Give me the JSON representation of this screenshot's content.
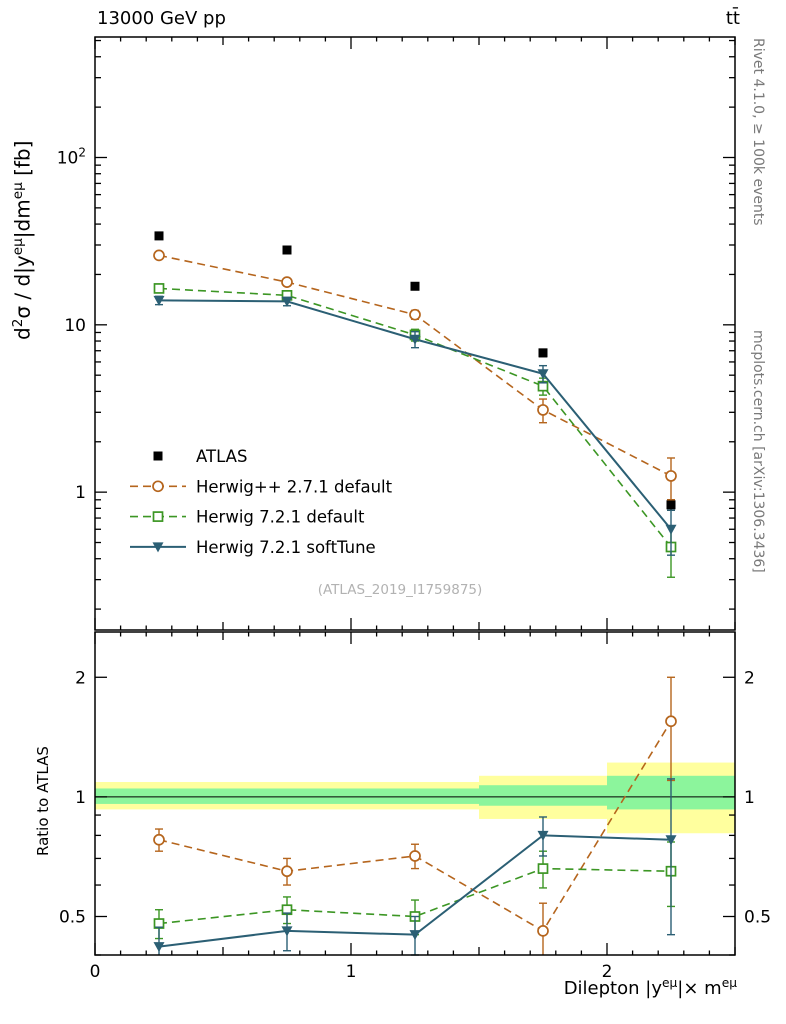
{
  "header": {
    "left": "13000 GeV pp",
    "right": "tt̄"
  },
  "side_labels": {
    "top": "Rivet 4.1.0, ≥ 100k events",
    "bottom": "mcplots.cern.ch [arXiv:1306.3436]"
  },
  "watermark": "(ATLAS_2019_I1759875)",
  "chart_data": {
    "type": "line",
    "x": [
      0.25,
      0.75,
      1.25,
      1.75,
      2.25
    ],
    "xlim": [
      0,
      2.5
    ],
    "xticks": [
      {
        "v": 0,
        "label": "0"
      },
      {
        "v": 1,
        "label": "1"
      },
      {
        "v": 2,
        "label": "2"
      }
    ],
    "xlabel_segments": [
      {
        "t": "Dilepton |y"
      },
      {
        "t": "eμ",
        "sup": true
      },
      {
        "t": "|× m"
      },
      {
        "t": "eμ",
        "sup": true
      }
    ],
    "top_panel": {
      "yscale": "log",
      "ylim": [
        0.15,
        525
      ],
      "yticks": [
        {
          "v": 1,
          "label": "1"
        },
        {
          "v": 10,
          "label": "10"
        },
        {
          "v": 100,
          "label": "10^2"
        }
      ],
      "ylabel_segments": [
        {
          "t": "d"
        },
        {
          "t": "2",
          "sup": true
        },
        {
          "t": "σ / d|y"
        },
        {
          "t": "eμ",
          "sup": true
        },
        {
          "t": "|dm"
        },
        {
          "t": "eμ",
          "sup": true
        },
        {
          "t": " [fb]"
        }
      ],
      "series": [
        {
          "name": "ATLAS",
          "marker": "square-filled",
          "color": "#000000",
          "line": "none",
          "values": [
            34,
            28,
            17,
            6.8,
            0.84
          ],
          "errors": [
            1.5,
            1.2,
            0.8,
            0.35,
            0.06
          ]
        },
        {
          "name": "Herwig++ 2.7.1 default",
          "marker": "circle-open",
          "color": "#b5651d",
          "line": "dashed",
          "values": [
            26,
            18,
            11.5,
            3.1,
            1.25
          ],
          "errors": [
            1.2,
            0.9,
            0.7,
            0.5,
            0.35
          ]
        },
        {
          "name": "Herwig 7.2.1 default",
          "marker": "square-open",
          "color": "#3c9624",
          "line": "dashed",
          "values": [
            16.5,
            15,
            8.7,
            4.3,
            0.47
          ],
          "errors": [
            0.9,
            0.8,
            0.7,
            0.5,
            0.16
          ]
        },
        {
          "name": "Herwig 7.2.1 softTune",
          "marker": "triangle-down-filled",
          "color": "#2b5f74",
          "line": "solid",
          "values": [
            14,
            13.8,
            8.2,
            5.1,
            0.6
          ],
          "errors": [
            0.8,
            0.8,
            0.9,
            0.6,
            0.18
          ]
        }
      ]
    },
    "ratio_panel": {
      "ylabel": "Ratio to ATLAS",
      "yscale": "log",
      "ylim": [
        0.4,
        2.6
      ],
      "yticks": [
        {
          "v": 0.5,
          "label": "0.5"
        },
        {
          "v": 1,
          "label": "1"
        },
        {
          "v": 2,
          "label": "2"
        }
      ],
      "bands": {
        "edges": [
          0,
          0.5,
          1.0,
          1.5,
          2.0,
          2.5
        ],
        "yellow": [
          [
            0.93,
            1.09
          ],
          [
            0.93,
            1.09
          ],
          [
            0.93,
            1.09
          ],
          [
            0.88,
            1.13
          ],
          [
            0.81,
            1.22
          ]
        ],
        "green": [
          [
            0.96,
            1.05
          ],
          [
            0.96,
            1.05
          ],
          [
            0.96,
            1.05
          ],
          [
            0.95,
            1.07
          ],
          [
            0.93,
            1.13
          ]
        ],
        "yellow_color": "#ffff9e",
        "green_color": "#8cf59c"
      },
      "series": [
        {
          "name": "Herwig++ 2.7.1 default",
          "marker": "circle-open",
          "color": "#b5651d",
          "line": "dashed",
          "values": [
            0.78,
            0.65,
            0.71,
            0.46,
            1.55
          ],
          "errors": [
            0.05,
            0.05,
            0.05,
            0.08,
            0.45
          ]
        },
        {
          "name": "Herwig 7.2.1 default",
          "marker": "square-open",
          "color": "#3c9624",
          "line": "dashed",
          "values": [
            0.48,
            0.52,
            0.5,
            0.66,
            0.65
          ],
          "errors": [
            0.04,
            0.04,
            0.05,
            0.07,
            0.12
          ]
        },
        {
          "name": "Herwig 7.2.1 softTune",
          "marker": "triangle-down-filled",
          "color": "#2b5f74",
          "line": "solid",
          "values": [
            0.42,
            0.46,
            0.45,
            0.8,
            0.78
          ],
          "errors": [
            0.05,
            0.05,
            0.05,
            0.09,
            0.33
          ]
        }
      ]
    }
  }
}
